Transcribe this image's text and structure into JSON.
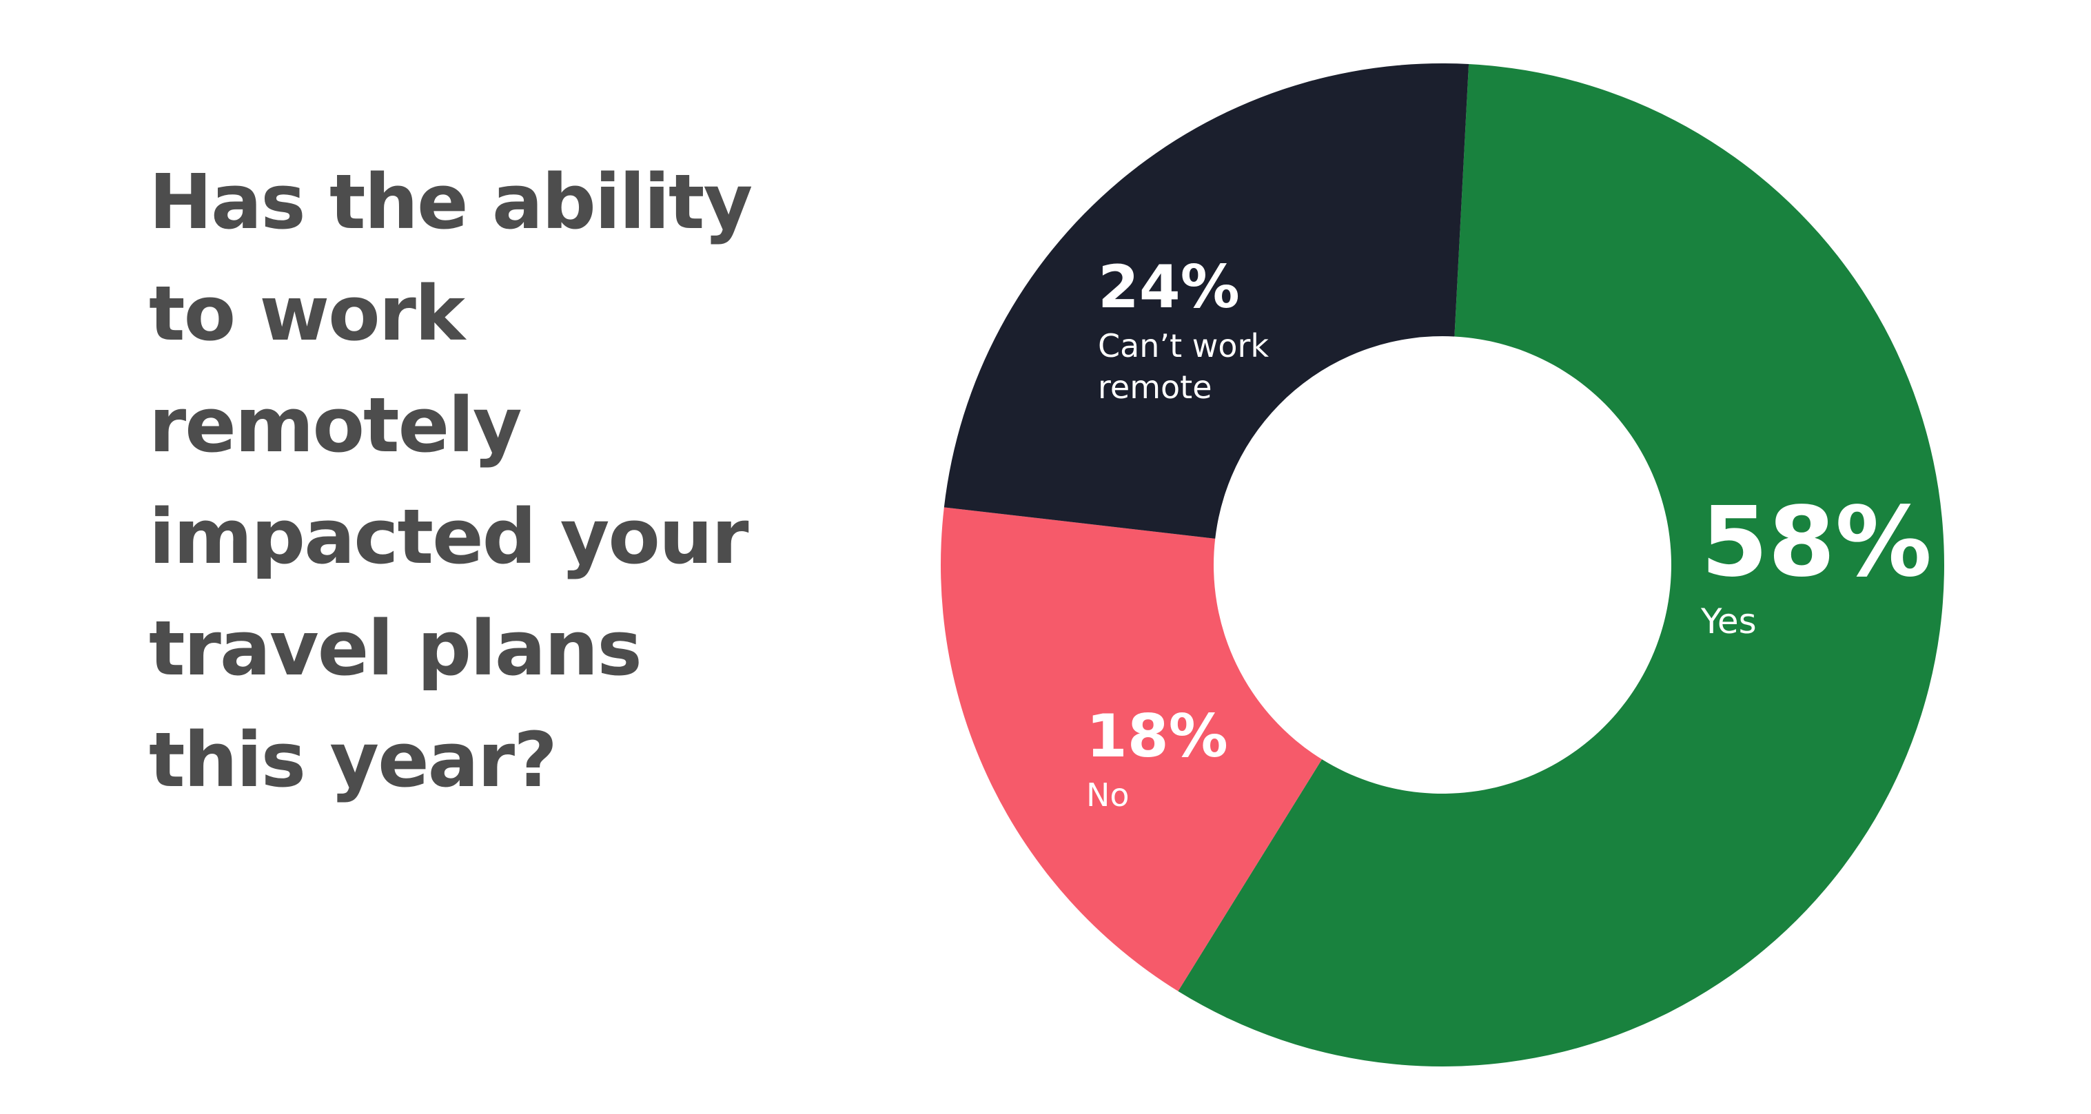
{
  "chart_data": {
    "type": "donut",
    "title_lines": [
      "Has the ability",
      "to work",
      "remotely",
      "impacted your",
      "travel plans",
      "this year?"
    ],
    "unit": "%",
    "slices": [
      {
        "label_lines": [
          "Yes"
        ],
        "value": 58,
        "value_label": "58%",
        "color": "#19823e"
      },
      {
        "label_lines": [
          "No"
        ],
        "value": 18,
        "value_label": "18%",
        "color": "#f65a6a"
      },
      {
        "label_lines": [
          "Can’t work",
          "remote"
        ],
        "value": 24,
        "value_label": "24%",
        "color": "#1b1f2d"
      }
    ],
    "start_angle_deg": 3,
    "direction": "clockwise"
  }
}
